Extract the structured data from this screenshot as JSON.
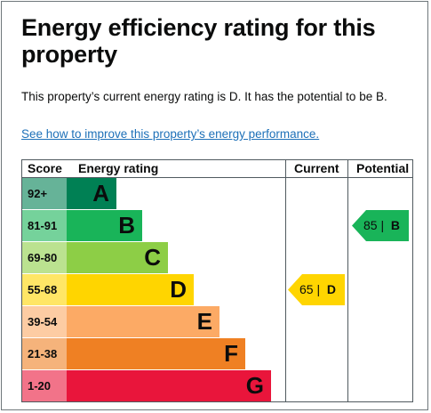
{
  "title": "Energy efficiency rating for this property",
  "summary": "This property’s current energy rating is D. It has the potential to be B.",
  "link_text": "See how to improve this property’s energy performance.",
  "chart": {
    "headers": {
      "score": "Score",
      "rating": "Energy rating",
      "current": "Current",
      "potential": "Potential"
    },
    "bands": [
      {
        "score": "92+",
        "letter": "A",
        "color": "#008054",
        "score_bg": "#66b398",
        "text_color": "#0b0c0c"
      },
      {
        "score": "81-91",
        "letter": "B",
        "color": "#19b459",
        "score_bg": "#75d29b",
        "text_color": "#0b0c0c"
      },
      {
        "score": "69-80",
        "letter": "C",
        "color": "#8dce46",
        "score_bg": "#bbe290",
        "text_color": "#0b0c0c"
      },
      {
        "score": "55-68",
        "letter": "D",
        "color": "#ffd500",
        "score_bg": "#ffe666",
        "text_color": "#0b0c0c"
      },
      {
        "score": "39-54",
        "letter": "E",
        "color": "#fcaa65",
        "score_bg": "#fdcca3",
        "text_color": "#0b0c0c"
      },
      {
        "score": "21-38",
        "letter": "F",
        "color": "#ef8023",
        "score_bg": "#f5b37b",
        "text_color": "#0b0c0c"
      },
      {
        "score": "1-20",
        "letter": "G",
        "color": "#e9153b",
        "score_bg": "#f27389",
        "text_color": "#0b0c0c"
      }
    ],
    "current": {
      "label": "65 |",
      "letter": "D",
      "band": 3,
      "color": "#ffd500"
    },
    "potential": {
      "label": "85 |",
      "letter": "B",
      "band": 1,
      "color": "#19b459"
    }
  }
}
